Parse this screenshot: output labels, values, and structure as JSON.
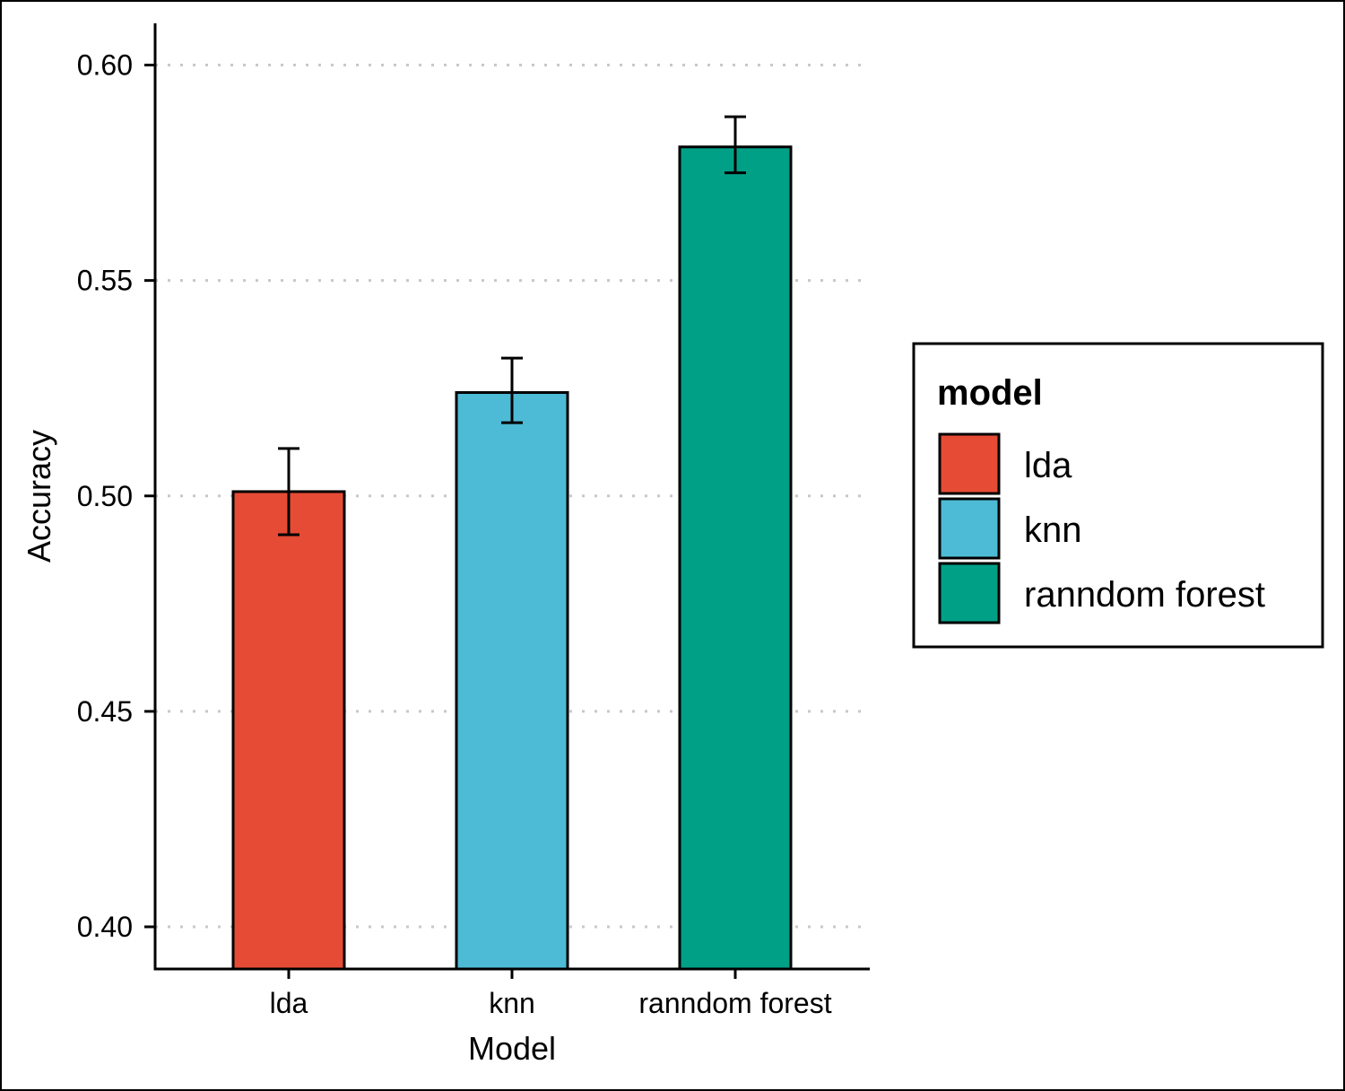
{
  "chart_data": {
    "type": "bar",
    "xlabel": "Model",
    "ylabel": "Accuracy",
    "ylim": [
      0.39,
      0.61
    ],
    "yticks": [
      0.4,
      0.45,
      0.5,
      0.55,
      0.6
    ],
    "ytick_labels": [
      "0.40",
      "0.45",
      "0.50",
      "0.55",
      "0.60"
    ],
    "grid": "horizontal dotted",
    "categories": [
      "lda",
      "knn",
      "ranndom forest"
    ],
    "values": [
      0.501,
      0.524,
      0.581
    ],
    "error_low": [
      0.491,
      0.517,
      0.575
    ],
    "error_high": [
      0.511,
      0.532,
      0.588
    ],
    "colors": [
      "#E64B35",
      "#4DBBD5",
      "#00A087"
    ],
    "legend": {
      "title": "model",
      "position": "right",
      "entries": [
        "lda",
        "knn",
        "ranndom forest"
      ]
    }
  }
}
